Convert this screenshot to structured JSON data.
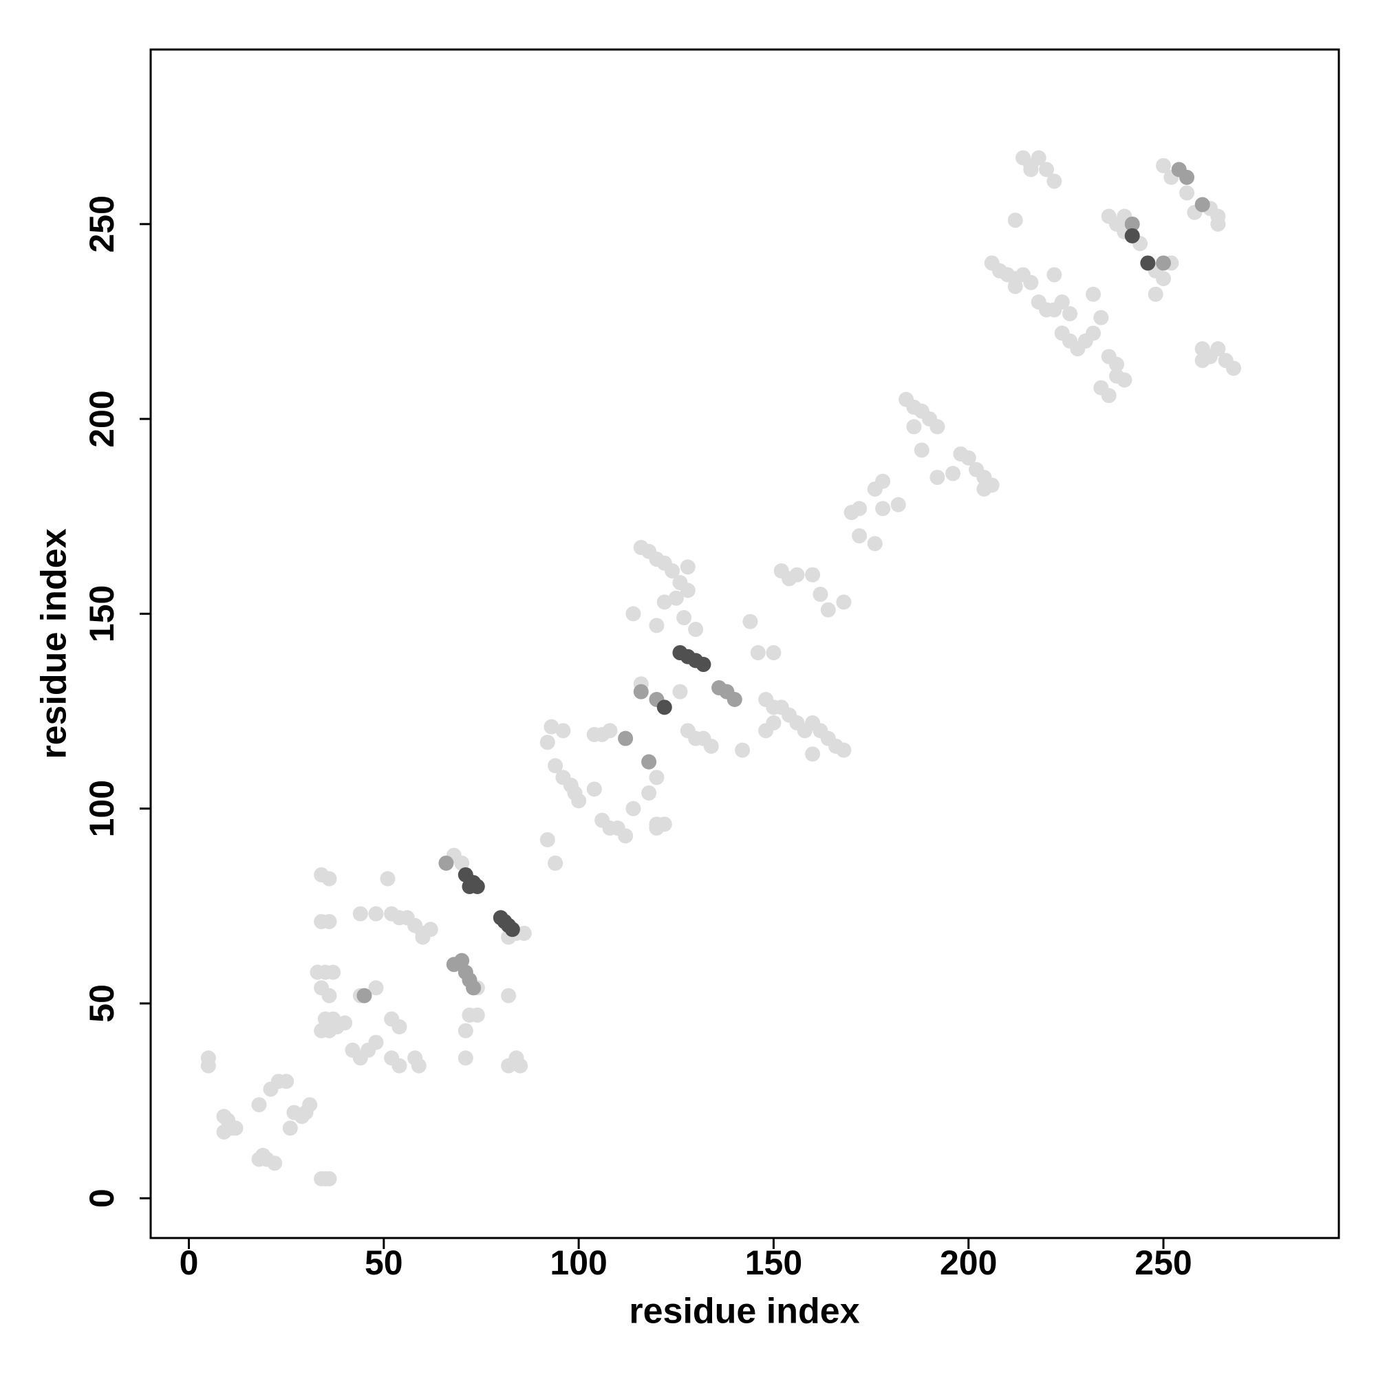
{
  "chart_data": {
    "type": "scatter",
    "xlabel": "residue index",
    "ylabel": "residue index",
    "xlim": [
      -9.8,
      295
    ],
    "ylim": [
      -10.2,
      294.8
    ],
    "xticks": [
      0,
      50,
      100,
      150,
      200,
      250
    ],
    "yticks": [
      0,
      50,
      100,
      150,
      200,
      250
    ],
    "series": [
      {
        "color": "#dcdcdc",
        "x": [
          5,
          5,
          9,
          10,
          11,
          12,
          9,
          18,
          19,
          20,
          22,
          18,
          21,
          23,
          25,
          27,
          29,
          30,
          31,
          26,
          34,
          35,
          36,
          34,
          36,
          34,
          36,
          33,
          35,
          37,
          34,
          36,
          35,
          37,
          34,
          36,
          38,
          40,
          42,
          44,
          46,
          48,
          44,
          48,
          44,
          48,
          52,
          54,
          56,
          58,
          60,
          62,
          60,
          51,
          52,
          54,
          52,
          54,
          58,
          59,
          66,
          68,
          70,
          84,
          86,
          82,
          72,
          74,
          72,
          74,
          71,
          71,
          82,
          82,
          84,
          85,
          92,
          94,
          94,
          96,
          93,
          92,
          94,
          96,
          98,
          99,
          100,
          104,
          106,
          108,
          104,
          106,
          108,
          110,
          112,
          120,
          122,
          120,
          120,
          118,
          114,
          116,
          118,
          120,
          122,
          124,
          126,
          128,
          125,
          128,
          127,
          130,
          120,
          122,
          114,
          116,
          126,
          128,
          130,
          132,
          134,
          142,
          144,
          150,
          146,
          148,
          150,
          152,
          154,
          156,
          158,
          160,
          162,
          164,
          166,
          168,
          160,
          150,
          148,
          150,
          152,
          154,
          156,
          160,
          162,
          164,
          168,
          170,
          172,
          170,
          172,
          176,
          178,
          176,
          178,
          182,
          184,
          186,
          188,
          190,
          192,
          186,
          188,
          192,
          196,
          198,
          200,
          202,
          204,
          206,
          204,
          206,
          208,
          210,
          212,
          214,
          216,
          212,
          212,
          214,
          216,
          218,
          220,
          222,
          216,
          218,
          220,
          222,
          224,
          226,
          232,
          222,
          224,
          226,
          228,
          230,
          232,
          234,
          236,
          238,
          240,
          236,
          234,
          236,
          238,
          240,
          240,
          244,
          248,
          252,
          250,
          238,
          248,
          250,
          252,
          256,
          258,
          262,
          264,
          264,
          260,
          262,
          264,
          266,
          268,
          260
        ],
        "y": [
          34,
          36,
          17,
          20,
          18,
          18,
          21,
          10,
          11,
          10,
          9,
          24,
          28,
          30,
          30,
          22,
          21,
          22,
          24,
          18,
          5,
          5,
          5,
          83,
          82,
          71,
          71,
          58,
          58,
          58,
          54,
          52,
          46,
          46,
          43,
          43,
          44,
          45,
          38,
          36,
          38,
          40,
          52,
          54,
          73,
          73,
          73,
          72,
          72,
          70,
          68,
          69,
          67,
          82,
          46,
          44,
          36,
          34,
          36,
          34,
          86,
          88,
          86,
          68,
          68,
          67,
          56,
          54,
          47,
          47,
          43,
          36,
          34,
          52,
          36,
          34,
          92,
          86,
          86,
          120,
          121,
          117,
          111,
          108,
          106,
          104,
          102,
          105,
          119,
          120,
          119,
          97,
          95,
          95,
          93,
          95,
          96,
          96,
          108,
          104,
          100,
          167,
          166,
          164,
          163,
          161,
          158,
          156,
          154,
          162,
          149,
          146,
          147,
          153,
          150,
          132,
          130,
          120,
          118,
          118,
          116,
          115,
          148,
          140,
          140,
          128,
          126,
          126,
          124,
          122,
          120,
          122,
          120,
          118,
          116,
          115,
          114,
          126,
          120,
          122,
          161,
          159,
          160,
          160,
          155,
          151,
          153,
          176,
          177,
          176,
          170,
          168,
          184,
          182,
          177,
          178,
          205,
          203,
          202,
          200,
          198,
          198,
          192,
          185,
          186,
          191,
          190,
          187,
          185,
          183,
          182,
          240,
          238,
          237,
          236,
          237,
          235,
          234,
          251,
          267,
          265,
          267,
          264,
          261,
          264,
          230,
          228,
          228,
          230,
          227,
          232,
          237,
          222,
          220,
          218,
          220,
          222,
          226,
          216,
          214,
          210,
          206,
          208,
          252,
          250,
          252,
          248,
          245,
          238,
          240,
          236,
          211,
          232,
          265,
          262,
          258,
          253,
          254,
          252,
          250,
          218,
          216,
          218,
          215,
          213,
          215
        ]
      },
      {
        "color": "#a0a0a0",
        "x": [
          45,
          70,
          68,
          71,
          72,
          73,
          66,
          112,
          118,
          116,
          120,
          242,
          254,
          256,
          260,
          250,
          136,
          138,
          140
        ],
        "y": [
          52,
          61,
          60,
          58,
          56,
          54,
          86,
          118,
          112,
          130,
          128,
          250,
          264,
          262,
          255,
          240,
          131,
          130,
          128
        ]
      },
      {
        "color": "#505050",
        "x": [
          72,
          73,
          74,
          71,
          80,
          81,
          82,
          83,
          122,
          126,
          128,
          130,
          132,
          242,
          246
        ],
        "y": [
          80,
          81,
          80,
          83,
          72,
          71,
          70,
          69,
          126,
          140,
          139,
          138,
          137,
          247,
          240
        ]
      }
    ]
  }
}
